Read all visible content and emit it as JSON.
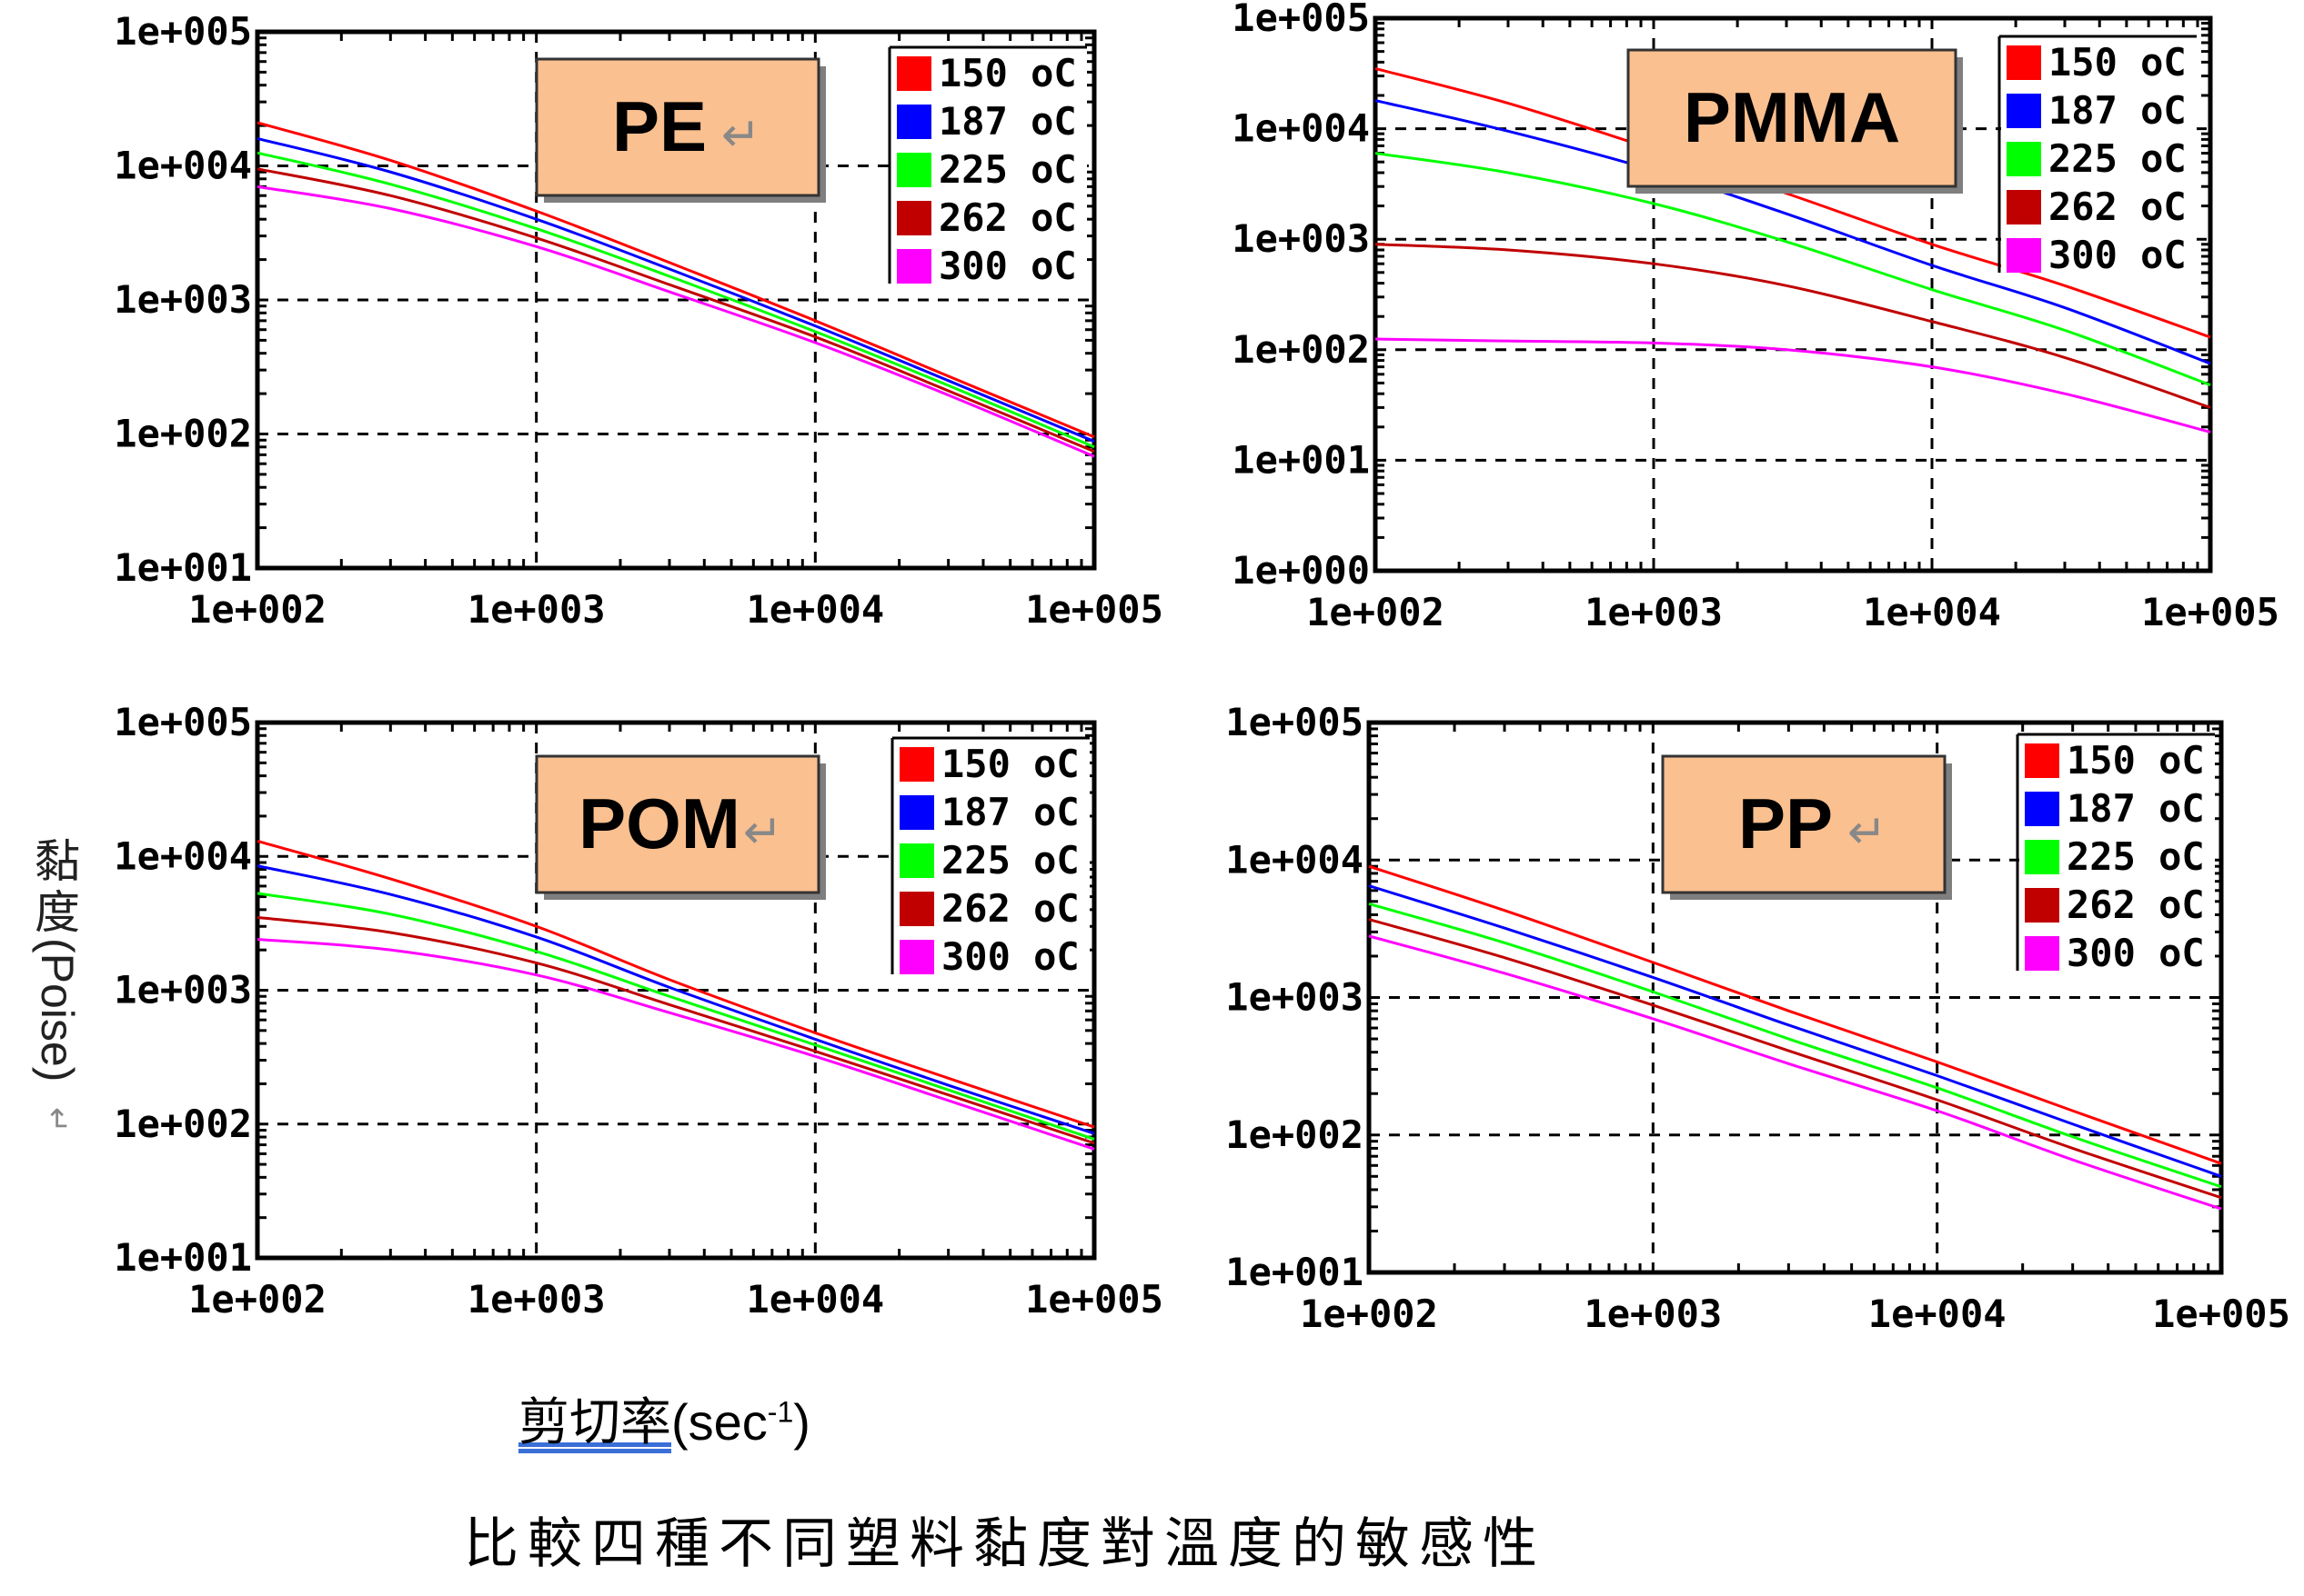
{
  "y_axis_label": {
    "cjk": "黏度",
    "text": "(Poise)",
    "mark": "↵"
  },
  "x_axis_label": {
    "cjk": "剪切率",
    "text": "(sec",
    "sup": "-1",
    "close": ")"
  },
  "caption": "比較四種不同塑料黏度對溫度的敏感性",
  "colors": {
    "150 oC": "#ff0000",
    "187 oC": "#0000ff",
    "225 oC": "#00ff00",
    "262 oC": "#c00000",
    "300 oC": "#ff00ff",
    "title_box": "#fac090",
    "grid": "#000000"
  },
  "chart_data": [
    {
      "type": "line",
      "title": "PE",
      "title_mark": "↵",
      "x_scale": "log",
      "y_scale": "log",
      "xlim": [
        100,
        100000
      ],
      "ylim": [
        10,
        100000
      ],
      "x_ticks": [
        "1e+002",
        "1e+003",
        "1e+004",
        "1e+005"
      ],
      "y_ticks": [
        "1e+001",
        "1e+002",
        "1e+003",
        "1e+004",
        "1e+005"
      ],
      "grid": true,
      "legend": "top-right",
      "x": [
        100,
        300,
        1000,
        3000,
        10000,
        30000,
        100000
      ],
      "series": [
        {
          "name": "150 oC",
          "values": [
            21000,
            11000,
            4600,
            1900,
            700,
            270,
            95
          ]
        },
        {
          "name": "187 oC",
          "values": [
            16000,
            9000,
            4000,
            1700,
            640,
            250,
            88
          ]
        },
        {
          "name": "225 oC",
          "values": [
            12500,
            7300,
            3400,
            1500,
            580,
            230,
            80
          ]
        },
        {
          "name": "262 oC",
          "values": [
            9500,
            6000,
            2900,
            1300,
            530,
            210,
            74
          ]
        },
        {
          "name": "300 oC",
          "values": [
            7000,
            4800,
            2500,
            1150,
            480,
            195,
            68
          ]
        }
      ]
    },
    {
      "type": "line",
      "title": "PMMA",
      "title_mark": "",
      "x_scale": "log",
      "y_scale": "log",
      "xlim": [
        100,
        100000
      ],
      "ylim": [
        1,
        100000
      ],
      "x_ticks": [
        "1e+002",
        "1e+003",
        "1e+004",
        "1e+005"
      ],
      "y_ticks": [
        "1e+000",
        "1e+001",
        "1e+002",
        "1e+003",
        "1e+004",
        "1e+005"
      ],
      "grid": true,
      "legend": "top-right",
      "x": [
        100,
        300,
        1000,
        3000,
        10000,
        30000,
        100000
      ],
      "series": [
        {
          "name": "150 oC",
          "values": [
            35000,
            17000,
            6500,
            2600,
            900,
            380,
            130
          ]
        },
        {
          "name": "187 oC",
          "values": [
            18000,
            9500,
            4200,
            1700,
            580,
            240,
            75
          ]
        },
        {
          "name": "225 oC",
          "values": [
            6000,
            4000,
            2100,
            950,
            350,
            150,
            48
          ]
        },
        {
          "name": "262 oC",
          "values": [
            900,
            800,
            600,
            380,
            180,
            85,
            30
          ]
        },
        {
          "name": "300 oC",
          "values": [
            125,
            120,
            115,
            100,
            70,
            40,
            18
          ]
        }
      ]
    },
    {
      "type": "line",
      "title": "POM",
      "title_mark": "↵",
      "x_scale": "log",
      "y_scale": "log",
      "xlim": [
        100,
        100000
      ],
      "ylim": [
        10,
        100000
      ],
      "x_ticks": [
        "1e+002",
        "1e+003",
        "1e+004",
        "1e+005"
      ],
      "y_ticks": [
        "1e+001",
        "1e+002",
        "1e+003",
        "1e+004",
        "1e+005"
      ],
      "grid": true,
      "legend": "top-right",
      "x": [
        100,
        300,
        1000,
        3000,
        10000,
        30000,
        100000
      ],
      "series": [
        {
          "name": "150 oC",
          "values": [
            13000,
            6800,
            3000,
            1200,
            480,
            220,
            95
          ]
        },
        {
          "name": "187 oC",
          "values": [
            8500,
            5200,
            2500,
            1050,
            430,
            195,
            85
          ]
        },
        {
          "name": "225 oC",
          "values": [
            5300,
            3700,
            1950,
            900,
            390,
            180,
            77
          ]
        },
        {
          "name": "262 oC",
          "values": [
            3500,
            2700,
            1600,
            780,
            350,
            165,
            72
          ]
        },
        {
          "name": "300 oC",
          "values": [
            2400,
            2000,
            1300,
            680,
            320,
            150,
            65
          ]
        }
      ]
    },
    {
      "type": "line",
      "title": "PP",
      "title_mark": "↵",
      "x_scale": "log",
      "y_scale": "log",
      "xlim": [
        100,
        100000
      ],
      "ylim": [
        10,
        100000
      ],
      "x_ticks": [
        "1e+002",
        "1e+003",
        "1e+004",
        "1e+005"
      ],
      "y_ticks": [
        "1e+001",
        "1e+002",
        "1e+003",
        "1e+004",
        "1e+005"
      ],
      "grid": true,
      "legend": "top-right",
      "x": [
        100,
        300,
        1000,
        3000,
        10000,
        30000,
        100000
      ],
      "series": [
        {
          "name": "150 oC",
          "values": [
            9000,
            4300,
            1800,
            800,
            340,
            150,
            62
          ]
        },
        {
          "name": "187 oC",
          "values": [
            6500,
            3200,
            1400,
            630,
            270,
            120,
            50
          ]
        },
        {
          "name": "225 oC",
          "values": [
            4800,
            2500,
            1100,
            500,
            220,
            97,
            42
          ]
        },
        {
          "name": "262 oC",
          "values": [
            3700,
            1950,
            880,
            410,
            180,
            80,
            35
          ]
        },
        {
          "name": "300 oC",
          "values": [
            2800,
            1500,
            700,
            330,
            150,
            66,
            29
          ]
        }
      ]
    }
  ]
}
